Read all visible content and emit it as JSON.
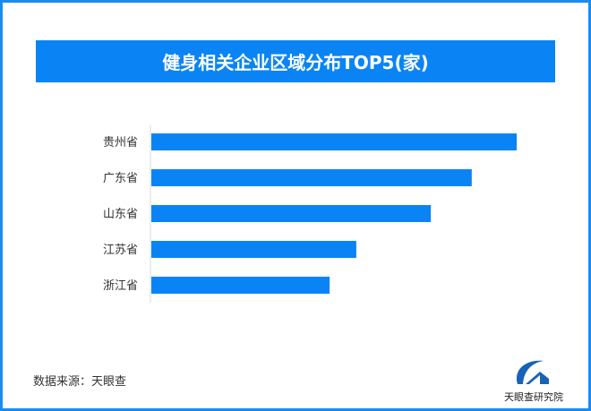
{
  "chart_data": {
    "type": "bar",
    "orientation": "horizontal",
    "title": "健身相关企业区域分布TOP5(家)",
    "categories": [
      "贵州省",
      "广东省",
      "山东省",
      "江苏省",
      "浙江省"
    ],
    "values": [
      1.0,
      0.877,
      0.765,
      0.561,
      0.488
    ],
    "values_note": "relative to largest bar (no axis values printed)",
    "xlabel": "",
    "ylabel": "",
    "grid": false,
    "bar_color": "#0a84f5",
    "border_color": "#1a8cf0"
  },
  "source": "数据来源：天眼查",
  "logo": {
    "text": "天眼查研究院"
  }
}
